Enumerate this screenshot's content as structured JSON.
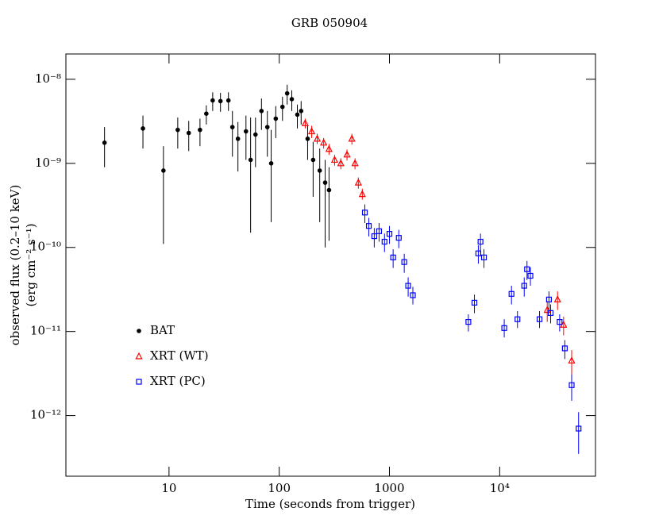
{
  "chart_data": {
    "type": "scatter",
    "title": "GRB 050904",
    "x_label": "Time (seconds from trigger)",
    "y_label": [
      "observed flux (0.2–10 keV)",
      "(erg cm⁻² s⁻¹)"
    ],
    "xscale": "log",
    "yscale": "log",
    "xlim": [
      1.16,
      74000
    ],
    "ylim": [
      1.9e-13,
      2e-08
    ],
    "xticks": [
      10,
      100,
      1000,
      {
        "value": 10000,
        "label": "10⁴"
      }
    ],
    "yticks": [
      {
        "value": 1e-12,
        "label": "10⁻¹²"
      },
      {
        "value": 1e-11,
        "label": "10⁻¹¹"
      },
      {
        "value": 1e-10,
        "label": "10⁻¹⁰"
      },
      {
        "value": 1e-09,
        "label": "10⁻⁹"
      },
      {
        "value": 1e-08,
        "label": "10⁻⁸"
      }
    ],
    "legend": "center left",
    "series": [
      {
        "name": "BAT",
        "color": "#000000",
        "marker": "circle",
        "x": [
          2.6,
          5.8,
          8.9,
          12.0,
          15.1,
          19.1,
          21.8,
          24.9,
          29.3,
          34.6,
          37.6,
          42.2,
          49.9,
          55,
          60.9,
          69,
          78,
          84.5,
          93,
          107,
          118,
          130,
          146,
          158,
          181,
          203,
          233,
          261,
          283
        ],
        "values": [
          1.76e-09,
          2.6e-09,
          8.2e-10,
          2.5e-09,
          2.3e-09,
          2.5e-09,
          3.9e-09,
          5.6e-09,
          5.5e-09,
          5.6e-09,
          2.7e-09,
          1.96e-09,
          2.4e-09,
          1.1e-09,
          2.2e-09,
          4.2e-09,
          2.7e-09,
          1e-09,
          3.4e-09,
          4.7e-09,
          6.8e-09,
          5.8e-09,
          3.8e-09,
          4.2e-09,
          1.96e-09,
          1.1e-09,
          8.2e-10,
          5.9e-10,
          4.8e-10
        ],
        "y_low": [
          9e-10,
          1.5e-09,
          1.1e-10,
          1.5e-09,
          1.4e-09,
          1.6e-09,
          2.9e-09,
          4.2e-09,
          4.1e-09,
          4.2e-09,
          1.2e-09,
          8e-10,
          1.1e-09,
          1.5e-10,
          9e-10,
          2.5e-09,
          1.2e-09,
          2e-10,
          2e-09,
          3.2e-09,
          5e-09,
          4.2e-09,
          2.6e-09,
          2.9e-09,
          1.1e-09,
          4e-10,
          2e-10,
          1e-10,
          1.2e-10
        ],
        "y_high": [
          2.7e-09,
          3.7e-09,
          1.6e-09,
          3.5e-09,
          3.2e-09,
          3.4e-09,
          4.9e-09,
          7e-09,
          6.9e-09,
          7e-09,
          4.2e-09,
          3.1e-09,
          3.7e-09,
          3.5e-09,
          3.5e-09,
          5.9e-09,
          4.2e-09,
          2.5e-09,
          4.8e-09,
          6.2e-09,
          8.6e-09,
          7.4e-09,
          5e-09,
          5.5e-09,
          2.8e-09,
          1.8e-09,
          1.5e-09,
          1.1e-09,
          9e-10
        ]
      },
      {
        "name": "XRT (WT)",
        "color": "#ff0000",
        "marker": "triangle",
        "x": [
          172,
          197,
          221,
          253,
          283,
          318,
          362,
          412,
          456,
          487,
          522,
          567,
          27000,
          33500,
          38000,
          45000
        ],
        "values": [
          3e-09,
          2.4e-09,
          1.96e-09,
          1.76e-09,
          1.48e-09,
          1.1e-09,
          1e-09,
          1.27e-09,
          1.96e-09,
          1e-09,
          5.9e-10,
          4.3e-10,
          1.8e-11,
          2.4e-11,
          1.2e-11,
          4.5e-12
        ],
        "y_low": [
          2.6e-09,
          2e-09,
          1.7e-09,
          1.5e-09,
          1.26e-09,
          9.4e-10,
          8.5e-10,
          1.08e-09,
          1.67e-09,
          8.5e-10,
          5e-10,
          3.7e-10,
          1.3e-11,
          1.8e-11,
          9e-12,
          3e-12
        ],
        "y_high": [
          3.4e-09,
          2.8e-09,
          2.25e-09,
          2e-09,
          1.7e-09,
          1.26e-09,
          1.15e-09,
          1.46e-09,
          2.25e-09,
          1.15e-09,
          6.8e-10,
          5e-10,
          2.3e-11,
          3e-11,
          1.5e-11,
          6e-12
        ]
      },
      {
        "name": "XRT (PC)",
        "color": "#0000ff",
        "marker": "square",
        "x": [
          598,
          650,
          728,
          805,
          902,
          1000,
          1080,
          1215,
          1362,
          1478,
          1631,
          5200,
          5900,
          6400,
          6700,
          7200,
          11000,
          12800,
          14500,
          16700,
          17700,
          19000,
          23000,
          28000,
          29000,
          35000,
          39000,
          45000,
          52000
        ],
        "values": [
          2.6e-10,
          1.8e-10,
          1.36e-10,
          1.56e-10,
          1.17e-10,
          1.45e-10,
          7.6e-11,
          1.3e-10,
          6.7e-11,
          3.5e-11,
          2.7e-11,
          1.3e-11,
          2.2e-11,
          8.5e-11,
          1.17e-10,
          7.6e-11,
          1.1e-11,
          2.8e-11,
          1.4e-11,
          3.5e-11,
          5.5e-11,
          4.6e-11,
          1.4e-11,
          2.4e-11,
          1.66e-11,
          1.3e-11,
          6.3e-12,
          2.3e-12,
          7e-13
        ],
        "y_low": [
          1.95e-10,
          1.35e-10,
          1e-10,
          1.17e-10,
          8.8e-11,
          1.1e-10,
          5.7e-11,
          9.8e-11,
          5e-11,
          2.6e-11,
          2.1e-11,
          1e-11,
          1.65e-11,
          6.4e-11,
          8.8e-11,
          5.7e-11,
          8.5e-12,
          2.1e-11,
          1.1e-11,
          2.6e-11,
          4.1e-11,
          3.5e-11,
          1.1e-11,
          1.8e-11,
          1.25e-11,
          1e-11,
          4.7e-12,
          1.5e-12,
          3.5e-13
        ],
        "y_high": [
          3.25e-10,
          2.25e-10,
          1.7e-10,
          1.95e-10,
          1.46e-10,
          1.8e-10,
          9.5e-11,
          1.62e-10,
          8.4e-11,
          4.4e-11,
          3.4e-11,
          1.6e-11,
          2.75e-11,
          1.06e-10,
          1.46e-10,
          9.5e-11,
          1.4e-11,
          3.5e-11,
          1.75e-11,
          4.4e-11,
          6.9e-11,
          5.8e-11,
          1.75e-11,
          3e-11,
          2.1e-11,
          1.6e-11,
          7.9e-12,
          3.1e-12,
          1.1e-12
        ]
      }
    ]
  }
}
